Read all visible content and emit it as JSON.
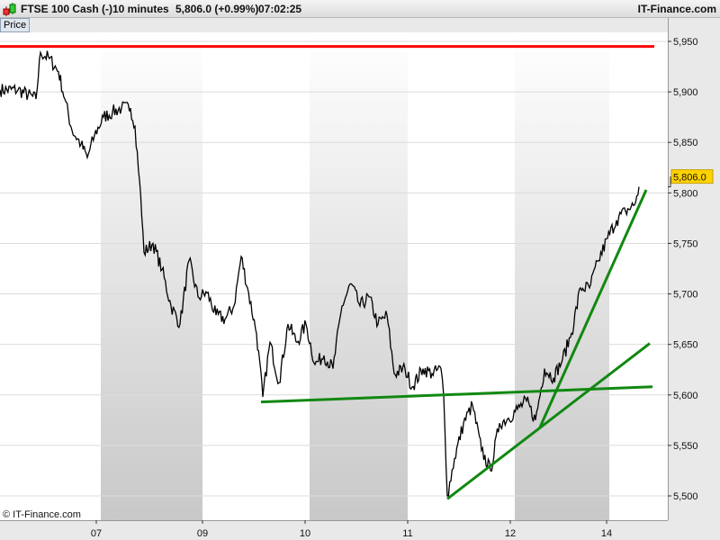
{
  "header": {
    "instrument": "FTSE 100 Cash (-)",
    "interval": "10 minutes",
    "last": "5,806.0 (+0.99%)",
    "time": "07:02:25",
    "brand": "IT-Finance.com"
  },
  "panel": {
    "tab": "Price",
    "copyright": "© IT-Finance.com"
  },
  "colors": {
    "resistance": "#ff0000",
    "trend": "#118811",
    "price": "#000000",
    "tag": "#ffd200"
  },
  "chart_data": {
    "type": "line",
    "ylim": [
      5480,
      5960
    ],
    "yticks": [
      "5,950",
      "5,900",
      "5,850",
      "5,800",
      "5,750",
      "5,700",
      "5,650",
      "5,600",
      "5,550",
      "5,500"
    ],
    "ytick_values": [
      5950,
      5900,
      5850,
      5800,
      5750,
      5700,
      5650,
      5600,
      5550,
      5500
    ],
    "xticks": [
      {
        "label": "07",
        "bar": 21.4
      },
      {
        "label": "09",
        "bar": 45
      },
      {
        "label": "10",
        "bar": 67.8
      },
      {
        "label": "11",
        "bar": 90.6
      },
      {
        "label": "12",
        "bar": 113.4
      },
      {
        "label": "14",
        "bar": 134.8
      }
    ],
    "last_price": "5,806.0",
    "last_value": 5806,
    "price": [
      [
        0,
        5902
      ],
      [
        4,
        5902
      ],
      [
        8,
        5893
      ],
      [
        9,
        5939
      ],
      [
        11,
        5933
      ],
      [
        13,
        5920
      ],
      [
        14.4,
        5893
      ],
      [
        16,
        5862
      ],
      [
        18,
        5848
      ],
      [
        19.4,
        5835
      ],
      [
        21,
        5857
      ],
      [
        23,
        5875
      ],
      [
        25,
        5880
      ],
      [
        27,
        5884
      ],
      [
        29,
        5884
      ],
      [
        30,
        5866
      ],
      [
        31,
        5813
      ],
      [
        32,
        5741
      ],
      [
        34,
        5750
      ],
      [
        36,
        5724
      ],
      [
        38,
        5688
      ],
      [
        40,
        5670
      ],
      [
        42,
        5733
      ],
      [
        44,
        5697
      ],
      [
        46,
        5701
      ],
      [
        48,
        5679
      ],
      [
        50,
        5675
      ],
      [
        52,
        5688
      ],
      [
        53.6,
        5737
      ],
      [
        55,
        5706
      ],
      [
        57,
        5661
      ],
      [
        58.4,
        5598
      ],
      [
        60,
        5652
      ],
      [
        62,
        5612
      ],
      [
        64,
        5670
      ],
      [
        66,
        5652
      ],
      [
        68,
        5670
      ],
      [
        70,
        5630
      ],
      [
        72,
        5639
      ],
      [
        74,
        5626
      ],
      [
        76,
        5688
      ],
      [
        78,
        5710
      ],
      [
        80,
        5688
      ],
      [
        82,
        5697
      ],
      [
        84,
        5670
      ],
      [
        86,
        5679
      ],
      [
        87.6,
        5621
      ],
      [
        90,
        5626
      ],
      [
        91.6,
        5608
      ],
      [
        94,
        5626
      ],
      [
        96,
        5621
      ],
      [
        98,
        5626
      ],
      [
        98.6,
        5599
      ],
      [
        99.4,
        5500
      ],
      [
        101,
        5537
      ],
      [
        103,
        5572
      ],
      [
        105,
        5590
      ],
      [
        107,
        5545
      ],
      [
        109,
        5525
      ],
      [
        111,
        5572
      ],
      [
        113,
        5577
      ],
      [
        115,
        5586
      ],
      [
        117,
        5594
      ],
      [
        119,
        5575
      ],
      [
        121,
        5626
      ],
      [
        123,
        5617
      ],
      [
        125,
        5635
      ],
      [
        127,
        5661
      ],
      [
        129,
        5706
      ],
      [
        131,
        5706
      ],
      [
        133,
        5733
      ],
      [
        135,
        5755
      ],
      [
        137,
        5773
      ],
      [
        139,
        5782
      ],
      [
        141,
        5788
      ],
      [
        142,
        5806
      ]
    ],
    "resistance": 5945,
    "trendlines": [
      [
        [
          58,
          5593
        ],
        [
          145,
          5608
        ]
      ],
      [
        [
          99.4,
          5497
        ],
        [
          144.4,
          5651
        ]
      ],
      [
        [
          120,
          5568
        ],
        [
          143.6,
          5803
        ]
      ]
    ]
  }
}
